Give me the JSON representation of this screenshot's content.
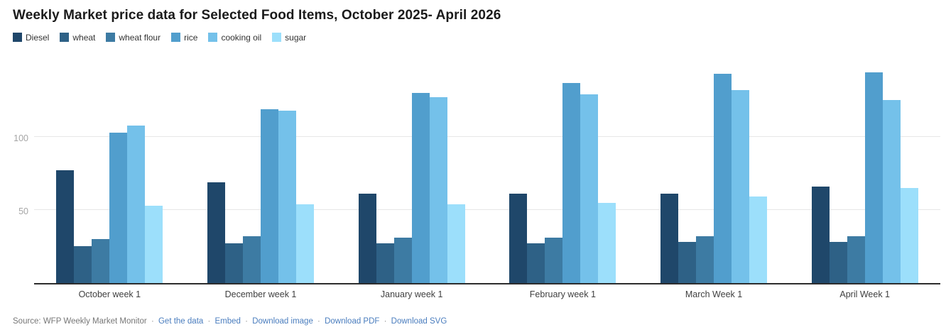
{
  "title": "Weekly Market price data for Selected Food Items, October 2025- April 2026",
  "chart_data": {
    "type": "bar",
    "title": "Weekly Market price data for Selected Food Items, October 2025- April 2026",
    "categories": [
      "October week 1",
      "December week 1",
      "January week 1",
      "February week 1",
      "March Week 1",
      "April Week 1"
    ],
    "series": [
      {
        "name": "Diesel",
        "color": "#1f476a",
        "values": [
          77,
          69,
          61,
          61,
          61,
          66
        ]
      },
      {
        "name": "wheat",
        "color": "#2e6186",
        "values": [
          25,
          27,
          27,
          27,
          28,
          28
        ]
      },
      {
        "name": "wheat flour",
        "color": "#3d7ba3",
        "values": [
          30,
          32,
          31,
          31,
          32,
          32
        ]
      },
      {
        "name": "rice",
        "color": "#519ecd",
        "values": [
          103,
          119,
          130,
          137,
          143,
          144
        ]
      },
      {
        "name": "cooking oil",
        "color": "#74c1ea",
        "values": [
          108,
          118,
          127,
          129,
          132,
          125
        ]
      },
      {
        "name": "sugar",
        "color": "#9cdffb",
        "values": [
          53,
          54,
          54,
          55,
          59,
          65
        ]
      }
    ],
    "xlabel": "",
    "ylabel": "",
    "yticks": [
      "50",
      "100"
    ],
    "ylim": [
      0,
      150
    ],
    "grid": true,
    "legend_position": "top-left"
  },
  "footer": {
    "source_label": "Source: WFP Weekly Market Monitor",
    "separator": "·",
    "links": [
      "Get the data",
      "Embed",
      "Download image",
      "Download PDF",
      "Download SVG"
    ]
  },
  "colors": {
    "gridline": "#e7e7e7",
    "axis_line": "#2d2d2d",
    "tick_label": "#a5a5a5",
    "link": "#4a7dbe"
  }
}
